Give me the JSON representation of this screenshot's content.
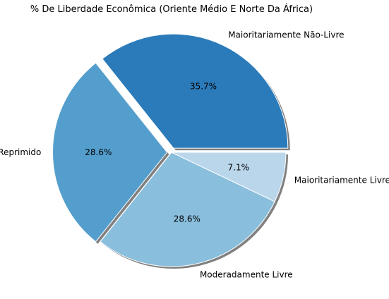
{
  "chart_data": {
    "type": "pie",
    "title": "% De Liberdade Econômica (Oriente Médio E Norte Da África)",
    "slices": [
      {
        "label": "Maioritariamente Não-Livre",
        "value": 35.7,
        "pct_label": "35.7%",
        "color": "#2b7bba",
        "explode": true
      },
      {
        "label": "Reprimido",
        "value": 28.6,
        "pct_label": "28.6%",
        "color": "#539ecd",
        "explode": true
      },
      {
        "label": "Moderadamente Livre",
        "value": 28.6,
        "pct_label": "28.6%",
        "color": "#89bedc",
        "explode": false
      },
      {
        "label": "Maioritariamente Livre",
        "value": 7.1,
        "pct_label": "7.1%",
        "color": "#bad6eb",
        "explode": false
      }
    ],
    "shadow": true,
    "start_angle_deg": 0,
    "direction": "counterclockwise"
  }
}
